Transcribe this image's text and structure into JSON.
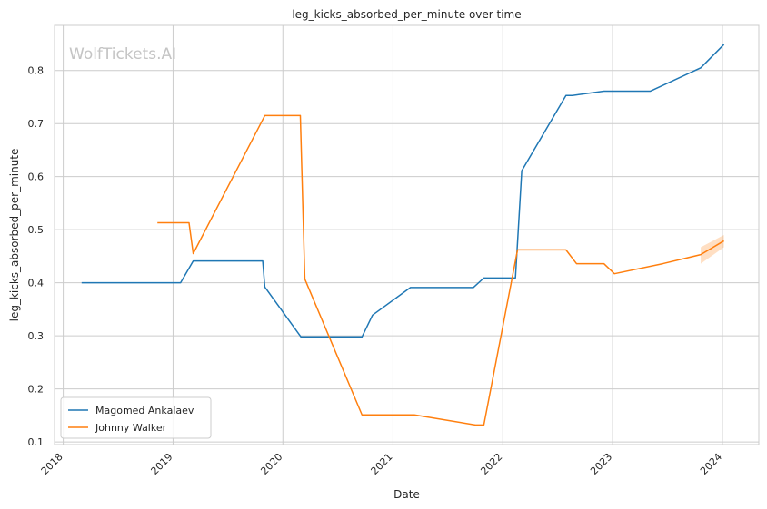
{
  "chart_data": {
    "type": "line",
    "title": "leg_kicks_absorbed_per_minute over time",
    "xlabel": "Date",
    "ylabel": "leg_kicks_absorbed_per_minute",
    "watermark": "WolfTickets.AI",
    "x_axis_type": "date",
    "xlim": [
      "2017-12-03",
      "2024-05-01"
    ],
    "ylim": [
      0.095,
      0.885
    ],
    "x_ticks": [
      "2018",
      "2019",
      "2020",
      "2021",
      "2022",
      "2023",
      "2024"
    ],
    "y_ticks": [
      "0.1",
      "0.2",
      "0.3",
      "0.4",
      "0.5",
      "0.6",
      "0.7",
      "0.8"
    ],
    "grid": true,
    "legend_position": "bottom-left",
    "series": [
      {
        "name": "Magomed Ankalaev",
        "color": "#1f77b4",
        "points": [
          [
            "2018-03-03",
            0.4
          ],
          [
            "2019-01-26",
            0.4
          ],
          [
            "2019-03-09",
            0.441
          ],
          [
            "2019-10-26",
            0.441
          ],
          [
            "2019-11-02",
            0.392
          ],
          [
            "2020-03-01",
            0.298
          ],
          [
            "2020-09-20",
            0.298
          ],
          [
            "2020-10-25",
            0.339
          ],
          [
            "2021-02-28",
            0.391
          ],
          [
            "2021-09-25",
            0.391
          ],
          [
            "2021-10-30",
            0.409
          ],
          [
            "2022-02-12",
            0.409
          ],
          [
            "2022-03-05",
            0.611
          ],
          [
            "2022-07-30",
            0.753
          ],
          [
            "2022-08-20",
            0.753
          ],
          [
            "2022-12-03",
            0.761
          ],
          [
            "2023-05-06",
            0.761
          ],
          [
            "2023-10-21",
            0.805
          ],
          [
            "2024-01-06",
            0.849
          ]
        ]
      },
      {
        "name": "Johnny Walker",
        "color": "#ff7f0e",
        "points": [
          [
            "2018-11-10",
            0.513
          ],
          [
            "2019-02-23",
            0.513
          ],
          [
            "2019-03-09",
            0.455
          ],
          [
            "2019-11-02",
            0.715
          ],
          [
            "2020-02-28",
            0.715
          ],
          [
            "2020-03-14",
            0.407
          ],
          [
            "2020-09-20",
            0.151
          ],
          [
            "2021-03-13",
            0.151
          ],
          [
            "2021-10-02",
            0.132
          ],
          [
            "2021-10-30",
            0.132
          ],
          [
            "2022-02-19",
            0.462
          ],
          [
            "2022-07-30",
            0.462
          ],
          [
            "2022-09-03",
            0.436
          ],
          [
            "2022-12-03",
            0.436
          ],
          [
            "2023-01-07",
            0.417
          ],
          [
            "2023-06-17",
            0.436
          ],
          [
            "2023-10-21",
            0.453
          ],
          [
            "2024-01-06",
            0.479
          ]
        ],
        "band": [
          [
            "2023-10-21",
            0.436,
            0.467
          ],
          [
            "2024-01-06",
            0.467,
            0.49
          ]
        ]
      }
    ]
  }
}
